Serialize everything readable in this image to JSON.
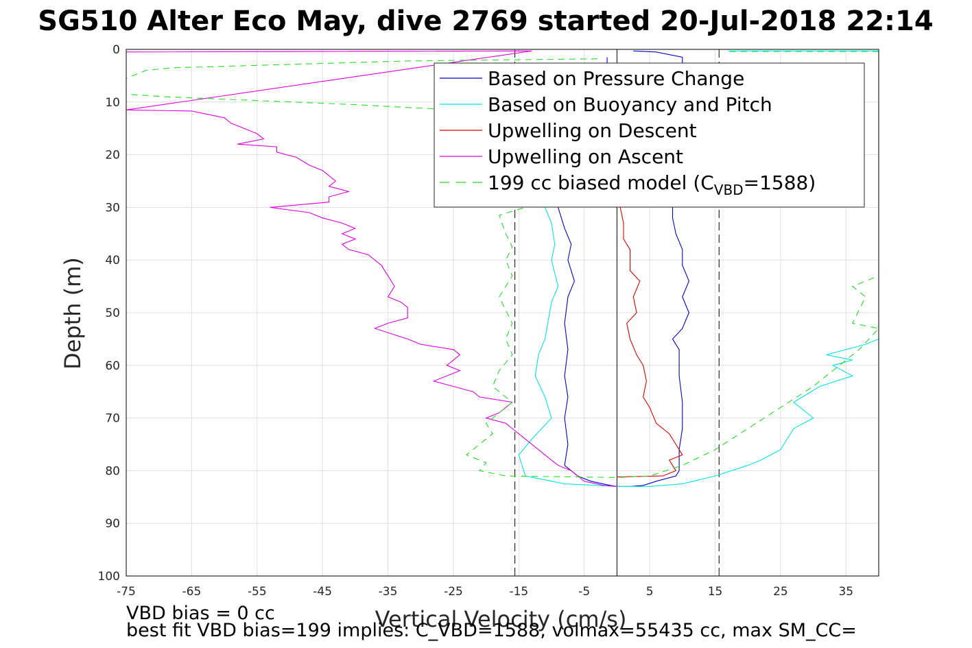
{
  "chart_data": {
    "type": "line",
    "title": "SG510 Alter Eco May, dive 2769 started 20-Jul-2018 22:14",
    "xlabel": "Vertical Velocity (cm/s)",
    "ylabel": "Depth (m)",
    "xlim": [
      -75,
      40
    ],
    "ylim": [
      0,
      100
    ],
    "y_reversed": true,
    "grid": true,
    "xticks": [
      -75,
      -65,
      -55,
      -45,
      -35,
      -25,
      -15,
      -5,
      5,
      15,
      25,
      35
    ],
    "yticks": [
      0,
      10,
      20,
      30,
      40,
      50,
      60,
      70,
      80,
      90,
      100
    ],
    "legend_position": "top-right",
    "legend": [
      {
        "label": "Based on Pressure Change",
        "color": "#0000cc",
        "style": "solid"
      },
      {
        "label": "Based on Buoyancy and Pitch",
        "color": "#00e5e5",
        "style": "solid"
      },
      {
        "label": "Upwelling on Descent",
        "color": "#e00000",
        "style": "solid"
      },
      {
        "label": "Upwelling on Ascent",
        "color": "#e000e0",
        "style": "solid"
      },
      {
        "label": "199 cc biased model (C",
        "sub": "VBD",
        "suffix": "=1588)",
        "color": "#22dd22",
        "style": "dashed"
      }
    ],
    "reference_lines": {
      "zero_line_x": 0,
      "dashed_bounds_x": [
        -15.6,
        15.6
      ]
    },
    "series": [
      {
        "name": "Based on Pressure Change",
        "color": "#0000cc",
        "dash": "",
        "points": [
          [
            -1.5,
            1.5
          ],
          [
            -1.5,
            3
          ],
          [
            0,
            4
          ],
          [
            -5,
            28
          ],
          [
            -9,
            30
          ],
          [
            -8,
            34
          ],
          [
            -7,
            37
          ],
          [
            -7.5,
            40
          ],
          [
            -6.5,
            44
          ],
          [
            -7.5,
            47
          ],
          [
            -8,
            52
          ],
          [
            -7.5,
            57
          ],
          [
            -8,
            62
          ],
          [
            -7.5,
            66
          ],
          [
            -8,
            70
          ],
          [
            -7.5,
            75
          ],
          [
            -8,
            79
          ],
          [
            -6,
            81
          ],
          [
            -4,
            82
          ],
          [
            -1,
            82.8
          ],
          [
            0,
            83
          ],
          [
            2,
            83
          ],
          [
            4,
            82.8
          ],
          [
            6,
            82
          ],
          [
            9,
            81
          ],
          [
            9.5,
            80
          ],
          [
            9.5,
            76
          ],
          [
            10,
            72
          ],
          [
            10,
            67
          ],
          [
            9.5,
            62
          ],
          [
            9.5,
            57
          ],
          [
            8.5,
            55
          ],
          [
            10,
            53
          ],
          [
            11,
            50
          ],
          [
            10,
            47
          ],
          [
            11,
            44
          ],
          [
            10,
            41
          ],
          [
            10,
            38
          ],
          [
            9,
            35
          ],
          [
            8.5,
            32
          ],
          [
            8.5,
            30
          ],
          [
            9.5,
            28
          ],
          [
            10,
            3
          ],
          [
            10,
            1.5
          ],
          [
            6,
            0.5
          ],
          [
            2.5,
            0.3
          ]
        ]
      },
      {
        "name": "Based on Buoyancy and Pitch",
        "color": "#00e5e5",
        "dash": "",
        "points": [
          [
            -11,
            30
          ],
          [
            -10,
            33
          ],
          [
            -9.5,
            37
          ],
          [
            -10,
            40
          ],
          [
            -9,
            45
          ],
          [
            -10,
            48
          ],
          [
            -11,
            55
          ],
          [
            -12,
            58
          ],
          [
            -12.5,
            62
          ],
          [
            -11,
            66
          ],
          [
            -10,
            70
          ],
          [
            -13,
            74
          ],
          [
            -15,
            77
          ],
          [
            -14,
            81
          ],
          [
            -8,
            82.5
          ],
          [
            0,
            83
          ],
          [
            5,
            83
          ],
          [
            10,
            82.5
          ],
          [
            15,
            81
          ],
          [
            20,
            79
          ],
          [
            22,
            78
          ],
          [
            25,
            76
          ],
          [
            27,
            72
          ],
          [
            30,
            70
          ],
          [
            27,
            67
          ],
          [
            31,
            64
          ],
          [
            36,
            62
          ],
          [
            33,
            60
          ],
          [
            36,
            59
          ],
          [
            32,
            58
          ],
          [
            38,
            56
          ],
          [
            40,
            55
          ]
        ]
      },
      {
        "name": "Upwelling on Descent",
        "color": "#e00000",
        "dash": "",
        "points": [
          [
            0.5,
            30
          ],
          [
            1,
            33
          ],
          [
            1,
            36
          ],
          [
            2,
            38
          ],
          [
            2,
            42
          ],
          [
            3.5,
            44
          ],
          [
            2.5,
            47
          ],
          [
            3,
            50
          ],
          [
            1.5,
            52
          ],
          [
            2,
            55
          ],
          [
            3,
            58
          ],
          [
            4,
            60
          ],
          [
            4.5,
            63
          ],
          [
            4,
            66
          ],
          [
            5,
            68
          ],
          [
            6,
            71
          ],
          [
            8,
            73
          ],
          [
            9,
            75
          ],
          [
            10,
            77
          ],
          [
            8,
            78
          ],
          [
            9,
            80
          ],
          [
            7,
            81
          ],
          [
            0,
            81.2
          ]
        ]
      },
      {
        "name": "Upwelling on Ascent",
        "color": "#e000e0",
        "dash": "",
        "points": [
          [
            -75,
            0.5
          ],
          [
            -13,
            0.3
          ],
          [
            -75,
            11.5
          ],
          [
            -65,
            11.7
          ],
          [
            -60,
            13
          ],
          [
            -59,
            14
          ],
          [
            -57,
            15
          ],
          [
            -55,
            16
          ],
          [
            -54,
            17
          ],
          [
            -58,
            18
          ],
          [
            -52,
            18.5
          ],
          [
            -52,
            19.5
          ],
          [
            -49,
            20.5
          ],
          [
            -47,
            22
          ],
          [
            -45,
            23
          ],
          [
            -43,
            25
          ],
          [
            -44,
            26
          ],
          [
            -41,
            27
          ],
          [
            -44,
            28
          ],
          [
            -44,
            29
          ],
          [
            -53,
            30
          ],
          [
            -47,
            31
          ],
          [
            -45,
            32
          ],
          [
            -42,
            33
          ],
          [
            -40,
            34
          ],
          [
            -42,
            35
          ],
          [
            -40,
            36
          ],
          [
            -42,
            37
          ],
          [
            -41,
            38
          ],
          [
            -38,
            39
          ],
          [
            -36,
            41
          ],
          [
            -35,
            43
          ],
          [
            -34,
            45
          ],
          [
            -35,
            47
          ],
          [
            -33,
            48
          ],
          [
            -32,
            49
          ],
          [
            -32,
            51
          ],
          [
            -35,
            52
          ],
          [
            -37,
            53
          ],
          [
            -32,
            55
          ],
          [
            -30,
            56
          ],
          [
            -25,
            57
          ],
          [
            -24,
            58
          ],
          [
            -26,
            60
          ],
          [
            -24,
            61
          ],
          [
            -28,
            63
          ],
          [
            -25,
            64
          ],
          [
            -22,
            65
          ],
          [
            -21,
            66
          ],
          [
            -16,
            67
          ],
          [
            -18,
            69
          ],
          [
            -20,
            70
          ],
          [
            -17,
            71
          ],
          [
            -16,
            72
          ],
          [
            -14,
            74
          ],
          [
            -11,
            77
          ],
          [
            -9,
            79
          ],
          [
            -7,
            80
          ],
          [
            -5,
            82
          ],
          [
            -2,
            82.8
          ],
          [
            0,
            83
          ]
        ]
      },
      {
        "name": "199 cc biased model (CVBD=1588)",
        "color": "#22dd22",
        "dash": "9,7",
        "points": [
          [
            -3,
            1.8
          ],
          [
            -32,
            2.2
          ],
          [
            -68,
            3.5
          ],
          [
            -72,
            4
          ],
          [
            -75,
            5.5
          ],
          [
            -75,
            8.5
          ],
          [
            -69,
            9
          ],
          [
            -40,
            10.5
          ],
          [
            -25,
            11.5
          ],
          [
            -8,
            12.2
          ],
          [
            -14,
            30
          ],
          [
            -18,
            31.5
          ],
          [
            -17,
            35
          ],
          [
            -16,
            37.5
          ],
          [
            -17,
            40
          ],
          [
            -16,
            43
          ],
          [
            -18,
            47
          ],
          [
            -16,
            52
          ],
          [
            -17,
            55
          ],
          [
            -16,
            58
          ],
          [
            -18,
            61
          ],
          [
            -19,
            64
          ],
          [
            -16,
            67
          ],
          [
            -18,
            69
          ],
          [
            -20,
            71
          ],
          [
            -19,
            73
          ],
          [
            -21,
            75
          ],
          [
            -23,
            77
          ],
          [
            -20,
            78.5
          ],
          [
            -21,
            80
          ],
          [
            -17,
            81
          ],
          [
            0,
            81.3
          ],
          [
            5,
            81
          ],
          [
            10,
            79
          ],
          [
            15,
            76
          ],
          [
            20,
            72
          ],
          [
            25,
            68
          ],
          [
            30,
            64
          ],
          [
            34,
            60
          ],
          [
            37,
            57
          ],
          [
            40,
            53
          ],
          [
            36,
            52
          ],
          [
            38,
            47
          ],
          [
            36,
            45
          ],
          [
            40,
            43
          ],
          [
            40,
            41
          ]
        ]
      },
      {
        "name": "",
        "color": "#22dd22",
        "dash": "9,7",
        "points": [
          [
            40,
            0.4
          ],
          [
            17,
            0.4
          ]
        ]
      },
      {
        "name": "",
        "color": "#00e5e5",
        "dash": "",
        "points": [
          [
            17,
            0.3
          ],
          [
            40,
            0.3
          ]
        ]
      }
    ]
  },
  "footer": {
    "line1": "VBD bias = 0 cc",
    "line2": "best fit VBD bias=199 implies: C_VBD=1588, volmax=55435 cc, max SM_CC="
  }
}
